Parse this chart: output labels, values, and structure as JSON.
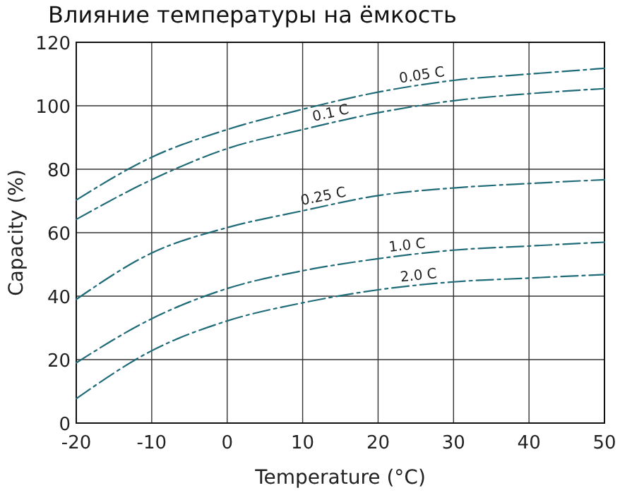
{
  "chart_data": {
    "type": "line",
    "title": "Влияние температуры на ёмкость",
    "xlabel": "Temperature (°C)",
    "ylabel": "Capacity (%)",
    "x": [
      -20,
      -10,
      0,
      10,
      20,
      30,
      40,
      50
    ],
    "series": [
      {
        "name": "0.05 C",
        "color": "#1f6b78",
        "values": [
          70.3,
          83.8,
          92.5,
          98.9,
          104.3,
          108,
          110,
          111.8
        ]
      },
      {
        "name": "0.1 C",
        "color": "#1f6b78",
        "values": [
          64.2,
          76.7,
          86.5,
          92.5,
          97.8,
          101.6,
          103.8,
          105.4
        ]
      },
      {
        "name": "0.25 C",
        "color": "#1f6b78",
        "values": [
          39,
          53.6,
          61.6,
          66.9,
          71.7,
          74.1,
          75.5,
          76.7
        ]
      },
      {
        "name": "1.0 C",
        "color": "#1f6b78",
        "values": [
          19,
          32.9,
          42.4,
          48,
          51.8,
          54.5,
          55.8,
          57
        ]
      },
      {
        "name": "2.0 C",
        "color": "#1f6b78",
        "values": [
          7.7,
          22.8,
          32.2,
          37.9,
          42,
          44.5,
          45.7,
          46.8
        ]
      }
    ],
    "xlim": [
      -20,
      50
    ],
    "ylim": [
      0,
      120
    ],
    "xticks": [
      -20,
      -10,
      0,
      10,
      20,
      30,
      40,
      50
    ],
    "yticks": [
      0,
      20,
      40,
      60,
      80,
      100,
      120
    ],
    "grid": true,
    "line_style": "dashed",
    "marker": "none"
  }
}
